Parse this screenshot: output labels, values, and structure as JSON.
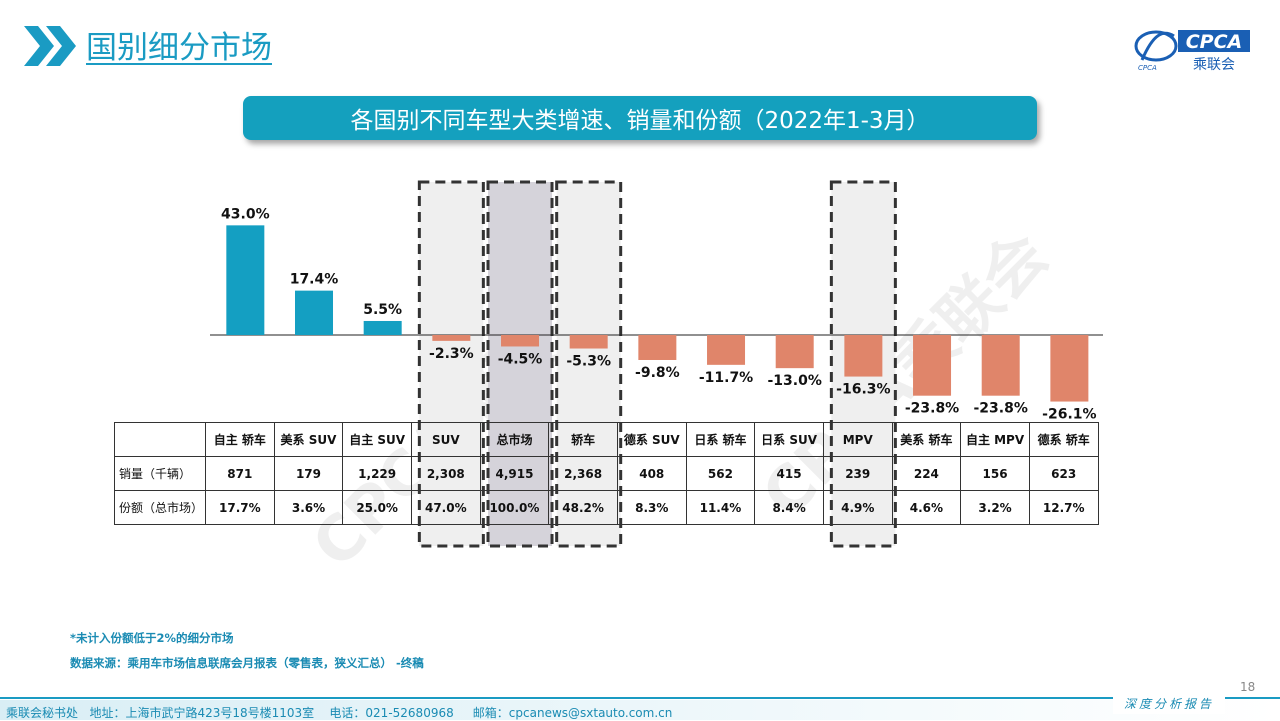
{
  "header": {
    "title": "国别细分市场",
    "logo_text": "CPCA",
    "logo_sub": "乘联会",
    "logo_emblem": "CPCA"
  },
  "banner": {
    "title": "各国别不同车型大类增速、销量和份额（2022年1-3月）"
  },
  "watermark": "CPCA乘联会",
  "chart_data": {
    "type": "bar",
    "categories": [
      "自主 轿车",
      "美系 SUV",
      "自主 SUV",
      "SUV",
      "总市场",
      "轿车",
      "德系 SUV",
      "日系 轿车",
      "日系 SUV",
      "MPV",
      "美系 轿车",
      "自主 MPV",
      "德系 轿车"
    ],
    "values": [
      43.0,
      17.4,
      5.5,
      -2.3,
      -4.5,
      -5.3,
      -9.8,
      -11.7,
      -13.0,
      -16.3,
      -23.8,
      -23.8,
      -26.1
    ],
    "value_labels": [
      "43.0%",
      "17.4%",
      "5.5%",
      "-2.3%",
      "-4.5%",
      "-5.3%",
      "-9.8%",
      "-11.7%",
      "-13.0%",
      "-16.3%",
      "-23.8%",
      "-23.8%",
      "-26.1%"
    ],
    "colors": {
      "positive": "#149fc2",
      "negative": "#e0856a"
    },
    "highlighted": [
      "SUV",
      "总市场",
      "轿车",
      "MPV"
    ]
  },
  "table": {
    "rows": [
      {
        "label": "销量（千辆）",
        "values": [
          "871",
          "179",
          "1,229",
          "2,308",
          "4,915",
          "2,368",
          "408",
          "562",
          "415",
          "239",
          "224",
          "156",
          "623"
        ]
      },
      {
        "label": "份额（总市场）",
        "values": [
          "17.7%",
          "3.6%",
          "25.0%",
          "47.0%",
          "100.0%",
          "48.2%",
          "8.3%",
          "11.4%",
          "8.4%",
          "4.9%",
          "4.6%",
          "3.2%",
          "12.7%"
        ]
      }
    ]
  },
  "notes": {
    "line1": "*未计入份额低于2%的细分市场",
    "line2": "数据来源：乘用车市场信息联席会月报表（零售表，狭义汇总）  -终稿"
  },
  "page_number": "18",
  "footer": {
    "text": "乘联会秘书处   地址：上海市武宁路423号18号楼1103室    电话：021-52680968     邮箱：cpcanews@sxtauto.com.cn",
    "report": "深度分析报告"
  }
}
